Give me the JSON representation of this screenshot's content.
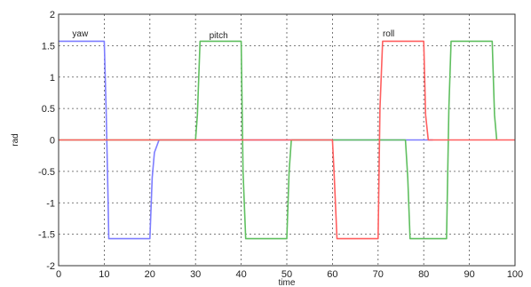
{
  "chart_data": {
    "type": "line",
    "xlabel": "time",
    "ylabel": "rad",
    "xlim": [
      0,
      100
    ],
    "ylim": [
      -2,
      2
    ],
    "xticks": [
      0,
      10,
      20,
      30,
      40,
      50,
      60,
      70,
      80,
      90,
      100
    ],
    "yticks": [
      2,
      1.5,
      1,
      0.5,
      0,
      -0.5,
      -1,
      -1.5,
      -2
    ],
    "grid": true,
    "annotations": [
      {
        "text": "yaw",
        "x": 3,
        "y": 1.65
      },
      {
        "text": "pitch",
        "x": 33,
        "y": 1.62
      },
      {
        "text": "roll",
        "x": 71,
        "y": 1.65
      }
    ],
    "series": [
      {
        "color": "#7d7dff",
        "x": [
          0,
          10,
          10.4,
          10.8,
          11,
          20,
          20.5,
          21,
          22,
          30,
          40,
          50,
          60,
          70,
          80,
          82
        ],
        "y": [
          1.57,
          1.57,
          0.5,
          -0.8,
          -1.57,
          -1.57,
          -0.6,
          -0.2,
          0,
          0,
          0,
          0,
          0,
          0,
          0,
          0
        ]
      },
      {
        "color": "#5fbf5f",
        "x": [
          0,
          30,
          30.4,
          31,
          40,
          40.4,
          41,
          50,
          50.5,
          51,
          70,
          72,
          75,
          76,
          76.5,
          77,
          85,
          85.5,
          86,
          95,
          95.5,
          96
        ],
        "y": [
          0,
          0,
          0.4,
          1.57,
          1.57,
          -0.5,
          -1.57,
          -1.57,
          -0.5,
          0,
          0,
          0,
          0,
          0,
          -0.6,
          -1.57,
          -1.57,
          0.5,
          1.57,
          1.57,
          0.4,
          0
        ]
      },
      {
        "color": "#ff5f5f",
        "x": [
          0,
          60,
          60.4,
          61,
          70,
          70.4,
          71,
          80,
          80.4,
          81,
          100
        ],
        "y": [
          0,
          0,
          -0.6,
          -1.57,
          -1.57,
          0.5,
          1.57,
          1.57,
          0.4,
          0,
          0
        ]
      }
    ]
  }
}
